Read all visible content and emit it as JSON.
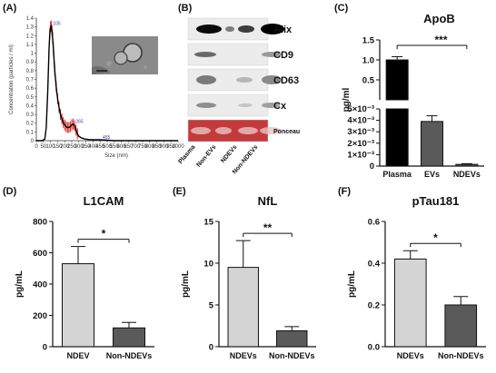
{
  "panels": {
    "a": {
      "label": "(A)"
    },
    "b": {
      "label": "(B)"
    },
    "c": {
      "label": "(C)"
    },
    "d": {
      "label": "(D)"
    },
    "e": {
      "label": "(E)"
    },
    "f": {
      "label": "(F)"
    }
  },
  "chart_data": [
    {
      "id": "a",
      "type": "line",
      "xlabel": "Size (nm)",
      "ylabel": "Concentration (particles / ml)",
      "xlim": [
        0,
        1000
      ],
      "ylim": [
        0,
        1.4
      ],
      "x_ticks": [
        "0",
        "50",
        "100",
        "150",
        "200",
        "250",
        "300",
        "350",
        "400",
        "450",
        "500",
        "550",
        "600",
        "650",
        "700",
        "750",
        "800",
        "850",
        "900",
        "950",
        "1000"
      ],
      "y_ticks": [
        "0",
        "0.1",
        "0.2",
        "0.3",
        "0.4",
        "0.5",
        "0.6",
        "0.7",
        "0.8",
        "0.9",
        "1",
        "1.1",
        "1.2",
        "1.3",
        "1.4"
      ],
      "peak_labels": [
        {
          "x": 105,
          "y": 1.31,
          "text": "105"
        },
        {
          "x": 265,
          "y": 0.19,
          "text": "265"
        },
        {
          "x": 455,
          "y": 0.01,
          "text": "455"
        }
      ],
      "series": [
        {
          "x": [
            0,
            40,
            60,
            70,
            80,
            90,
            95,
            100,
            105,
            110,
            115,
            120,
            125,
            130,
            140,
            150,
            160,
            170,
            180,
            190,
            200,
            210,
            220,
            230,
            240,
            250,
            260,
            270,
            280,
            290,
            300,
            320,
            340,
            360,
            380,
            400,
            450,
            500,
            550,
            600,
            700,
            800,
            900,
            1000
          ],
          "values": [
            0,
            0,
            0.02,
            0.15,
            0.55,
            1.05,
            1.22,
            1.3,
            1.31,
            1.26,
            1.18,
            1.06,
            0.93,
            0.8,
            0.62,
            0.48,
            0.38,
            0.3,
            0.25,
            0.21,
            0.18,
            0.16,
            0.15,
            0.15,
            0.16,
            0.18,
            0.19,
            0.17,
            0.12,
            0.08,
            0.05,
            0.03,
            0.02,
            0.015,
            0.01,
            0.01,
            0.01,
            0.005,
            0,
            0,
            0,
            0,
            0,
            0
          ]
        }
      ]
    },
    {
      "id": "b",
      "type": "table",
      "rows": [
        "Alix",
        "CD9",
        "CD63",
        "Cx",
        "Ponceau"
      ],
      "lanes": [
        "Plasma",
        "Non-EVs",
        "NDEVs",
        "Non-NDEVs"
      ]
    },
    {
      "id": "c",
      "type": "bar",
      "title": "ApoB",
      "ylabel": "pg/ml",
      "categories": [
        "Plasma",
        "EVs",
        "NDEVs"
      ],
      "values": [
        1.0,
        0.0039,
        0.00015
      ],
      "errors": [
        0.08,
        0.0005,
        6e-05
      ],
      "upper_segment": {
        "range": [
          0,
          1.5
        ],
        "ticks": [
          "0.5",
          "1.0",
          "1.5"
        ]
      },
      "lower_segment": {
        "range": [
          0,
          0.005
        ],
        "ticks": [
          "0",
          "1×10⁻³",
          "2×10⁻³",
          "3×10⁻³",
          "4×10⁻³",
          "5×10⁻³"
        ]
      },
      "significance": {
        "text": "***",
        "between": [
          "Plasma",
          "NDEVs"
        ]
      }
    },
    {
      "id": "d",
      "type": "bar",
      "title": "L1CAM",
      "ylabel": "pg/mL",
      "ylim": [
        0,
        800
      ],
      "y_ticks": [
        "0",
        "200",
        "400",
        "600",
        "800"
      ],
      "categories": [
        "NDEV",
        "Non-NDEVs"
      ],
      "values": [
        530,
        120
      ],
      "errors": [
        110,
        35
      ],
      "significance": {
        "text": "*"
      }
    },
    {
      "id": "e",
      "type": "bar",
      "title": "NfL",
      "ylabel": "pg/mL",
      "ylim": [
        0,
        15
      ],
      "y_ticks": [
        "0",
        "5",
        "10",
        "15"
      ],
      "categories": [
        "NDEVs",
        "Non-NDEVs"
      ],
      "values": [
        9.5,
        1.9
      ],
      "errors": [
        3.2,
        0.5
      ],
      "significance": {
        "text": "**"
      }
    },
    {
      "id": "f",
      "type": "bar",
      "title": "pTau181",
      "ylabel": "pg/mL",
      "ylim": [
        0,
        0.6
      ],
      "y_ticks": [
        "0.0",
        "0.2",
        "0.4",
        "0.6"
      ],
      "categories": [
        "NDEVs",
        "Non-NDEVs"
      ],
      "values": [
        0.42,
        0.2
      ],
      "errors": [
        0.04,
        0.04
      ],
      "significance": {
        "text": "*"
      }
    }
  ],
  "colors": {
    "light_bar": "#d4d4d4",
    "dark_bar": "#5a5a5a",
    "black_bar": "#000000",
    "nta_line": "#000000",
    "nta_error": "#e02020",
    "ponceau": "#c43a3a"
  }
}
